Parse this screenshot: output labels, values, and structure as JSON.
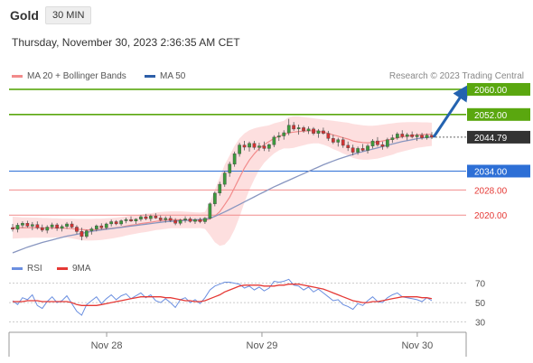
{
  "instrument": {
    "title": "Gold",
    "timeframe": "30 MIN"
  },
  "timestamp": "Thursday, November 30, 2023 2:36:35 AM CET",
  "legend": {
    "ma20": {
      "label": "MA 20 + Bollinger Bands",
      "color": "#f28b8b"
    },
    "ma50": {
      "label": "MA 50",
      "color": "#2d5fa8"
    },
    "rsi": {
      "label": "RSI",
      "color": "#6b8fe0"
    },
    "rsi_ma": {
      "label": "9MA",
      "color": "#e53935"
    }
  },
  "copyright": "Research © 2023 Trading Central",
  "colors": {
    "resistance": "#5aa70f",
    "pivot": "#2d6fd6",
    "support": "#f28b8b",
    "support_text": "#e53935",
    "current": "#333333",
    "arrow": "#2463b0",
    "candle_up": "#3c9a3c",
    "candle_down": "#d33333",
    "band_fill": "#fcd4d4",
    "ma50": "#8896c0"
  },
  "chart_data": [
    {
      "type": "candlestick",
      "xlabel": "",
      "ylabel": "",
      "x_ticks": [
        "Nov 28",
        "Nov 29",
        "Nov 30"
      ],
      "ylim": [
        2008,
        2062
      ],
      "levels": [
        {
          "label": "2060.00",
          "value": 2060.0,
          "kind": "resistance"
        },
        {
          "label": "2052.00",
          "value": 2052.0,
          "kind": "resistance"
        },
        {
          "label": "2044.79",
          "value": 2044.79,
          "kind": "current"
        },
        {
          "label": "2034.00",
          "value": 2034.0,
          "kind": "pivot"
        },
        {
          "label": "2028.00",
          "value": 2028.0,
          "kind": "support"
        },
        {
          "label": "2020.00",
          "value": 2020.0,
          "kind": "support"
        }
      ],
      "ohlc": [
        [
          2016.0,
          2017.2,
          2014.8,
          2015.5
        ],
        [
          2015.5,
          2017.5,
          2014.5,
          2016.8
        ],
        [
          2016.8,
          2018.0,
          2015.9,
          2017.4
        ],
        [
          2017.4,
          2018.2,
          2016.0,
          2016.5
        ],
        [
          2016.5,
          2017.8,
          2015.2,
          2017.0
        ],
        [
          2017.0,
          2018.0,
          2015.4,
          2016.0
        ],
        [
          2016.0,
          2017.0,
          2014.6,
          2015.2
        ],
        [
          2015.2,
          2016.8,
          2014.2,
          2016.2
        ],
        [
          2016.2,
          2017.6,
          2015.5,
          2016.9
        ],
        [
          2016.9,
          2017.5,
          2015.0,
          2015.8
        ],
        [
          2015.8,
          2017.0,
          2014.8,
          2016.4
        ],
        [
          2016.4,
          2017.8,
          2015.6,
          2017.2
        ],
        [
          2017.2,
          2018.0,
          2015.8,
          2016.2
        ],
        [
          2016.2,
          2016.8,
          2014.0,
          2014.8
        ],
        [
          2014.8,
          2016.0,
          2012.0,
          2013.2
        ],
        [
          2013.2,
          2015.4,
          2012.6,
          2015.0
        ],
        [
          2015.0,
          2016.2,
          2013.8,
          2015.6
        ],
        [
          2015.6,
          2017.0,
          2014.8,
          2016.6
        ],
        [
          2016.6,
          2017.4,
          2015.4,
          2016.0
        ],
        [
          2016.0,
          2017.6,
          2015.4,
          2017.2
        ],
        [
          2017.2,
          2018.6,
          2016.4,
          2017.9
        ],
        [
          2017.9,
          2018.4,
          2016.8,
          2017.2
        ],
        [
          2017.2,
          2018.6,
          2016.6,
          2018.2
        ],
        [
          2018.2,
          2019.2,
          2017.4,
          2018.6
        ],
        [
          2018.6,
          2019.6,
          2017.8,
          2018.1
        ],
        [
          2018.1,
          2019.0,
          2017.2,
          2018.7
        ],
        [
          2018.7,
          2020.0,
          2018.0,
          2019.5
        ],
        [
          2019.5,
          2020.4,
          2018.4,
          2018.9
        ],
        [
          2018.9,
          2020.2,
          2018.0,
          2019.7
        ],
        [
          2019.7,
          2020.6,
          2018.8,
          2019.1
        ],
        [
          2019.1,
          2019.9,
          2018.0,
          2018.5
        ],
        [
          2018.5,
          2019.6,
          2017.6,
          2019.0
        ],
        [
          2019.0,
          2019.8,
          2017.8,
          2018.3
        ],
        [
          2018.3,
          2019.0,
          2016.8,
          2017.4
        ],
        [
          2017.4,
          2018.8,
          2016.8,
          2018.4
        ],
        [
          2018.4,
          2019.6,
          2017.6,
          2018.8
        ],
        [
          2018.8,
          2019.4,
          2017.6,
          2018.0
        ],
        [
          2018.0,
          2019.0,
          2017.2,
          2018.6
        ],
        [
          2018.6,
          2019.2,
          2017.4,
          2017.9
        ],
        [
          2017.9,
          2019.4,
          2017.2,
          2019.0
        ],
        [
          2019.0,
          2024.0,
          2018.6,
          2023.6
        ],
        [
          2023.6,
          2027.5,
          2022.8,
          2027.0
        ],
        [
          2027.0,
          2030.6,
          2026.2,
          2029.8
        ],
        [
          2029.8,
          2034.0,
          2029.0,
          2033.4
        ],
        [
          2033.4,
          2037.0,
          2032.2,
          2036.2
        ],
        [
          2036.2,
          2040.2,
          2035.4,
          2039.5
        ],
        [
          2039.5,
          2043.0,
          2038.6,
          2042.3
        ],
        [
          2042.3,
          2043.6,
          2040.6,
          2041.6
        ],
        [
          2041.6,
          2043.4,
          2040.2,
          2042.8
        ],
        [
          2042.8,
          2043.6,
          2040.8,
          2041.5
        ],
        [
          2041.5,
          2043.0,
          2040.4,
          2042.0
        ],
        [
          2042.0,
          2043.4,
          2040.4,
          2041.2
        ],
        [
          2041.2,
          2042.8,
          2040.2,
          2042.4
        ],
        [
          2042.4,
          2045.4,
          2041.6,
          2044.8
        ],
        [
          2044.8,
          2046.4,
          2043.6,
          2045.2
        ],
        [
          2045.2,
          2047.0,
          2044.0,
          2046.2
        ],
        [
          2046.2,
          2050.6,
          2045.4,
          2048.6
        ],
        [
          2048.6,
          2049.6,
          2046.8,
          2047.4
        ],
        [
          2047.4,
          2048.8,
          2045.6,
          2047.8
        ],
        [
          2047.8,
          2048.4,
          2046.2,
          2046.8
        ],
        [
          2046.8,
          2048.2,
          2045.8,
          2047.4
        ],
        [
          2047.4,
          2048.0,
          2045.4,
          2046.0
        ],
        [
          2046.0,
          2047.4,
          2044.6,
          2046.8
        ],
        [
          2046.8,
          2047.8,
          2045.6,
          2046.0
        ],
        [
          2046.0,
          2046.8,
          2043.6,
          2044.4
        ],
        [
          2044.4,
          2045.6,
          2042.6,
          2043.2
        ],
        [
          2043.2,
          2044.6,
          2041.8,
          2044.0
        ],
        [
          2044.0,
          2044.8,
          2041.4,
          2042.2
        ],
        [
          2042.2,
          2043.4,
          2040.4,
          2041.4
        ],
        [
          2041.4,
          2042.4,
          2039.0,
          2040.0
        ],
        [
          2040.0,
          2041.8,
          2039.2,
          2041.2
        ],
        [
          2041.2,
          2042.6,
          2040.2,
          2040.6
        ],
        [
          2040.6,
          2042.6,
          2039.6,
          2042.0
        ],
        [
          2042.0,
          2044.2,
          2041.2,
          2043.6
        ],
        [
          2043.6,
          2044.8,
          2041.8,
          2042.4
        ],
        [
          2042.4,
          2043.4,
          2040.8,
          2041.8
        ],
        [
          2041.8,
          2044.6,
          2041.2,
          2044.0
        ],
        [
          2044.0,
          2045.6,
          2043.0,
          2044.6
        ],
        [
          2044.6,
          2046.4,
          2044.0,
          2045.8
        ],
        [
          2045.8,
          2047.0,
          2044.4,
          2045.0
        ],
        [
          2045.0,
          2046.2,
          2043.8,
          2045.6
        ],
        [
          2045.6,
          2046.6,
          2044.4,
          2044.9
        ],
        [
          2044.9,
          2046.0,
          2043.6,
          2045.4
        ],
        [
          2045.4,
          2046.2,
          2044.0,
          2044.6
        ],
        [
          2044.6,
          2046.0,
          2044.0,
          2045.4
        ],
        [
          2045.4,
          2046.4,
          2044.2,
          2044.8
        ]
      ],
      "ma50": [
        2008.0,
        2008.6,
        2009.2,
        2009.8,
        2010.3,
        2010.8,
        2011.3,
        2011.7,
        2012.1,
        2012.5,
        2012.9,
        2013.3,
        2013.6,
        2013.9,
        2014.2,
        2014.5,
        2014.8,
        2015.1,
        2015.3,
        2015.5,
        2015.7,
        2015.9,
        2016.1,
        2016.3,
        2016.5,
        2016.7,
        2016.9,
        2017.1,
        2017.3,
        2017.5,
        2017.7,
        2017.9,
        2018.0,
        2018.1,
        2018.2,
        2018.3,
        2018.4,
        2018.5,
        2018.6,
        2018.7,
        2019.0,
        2019.6,
        2020.3,
        2021.0,
        2021.8,
        2022.6,
        2023.4,
        2024.2,
        2025.0,
        2025.8,
        2026.6,
        2027.4,
        2028.2,
        2029.0,
        2029.7,
        2030.4,
        2031.1,
        2031.8,
        2032.5,
        2033.2,
        2033.9,
        2034.6,
        2035.3,
        2036.0,
        2036.6,
        2037.2,
        2037.8,
        2038.3,
        2038.8,
        2039.3,
        2039.8,
        2040.2,
        2040.6,
        2041.0,
        2041.4,
        2041.8,
        2042.2,
        2042.6,
        2043.0,
        2043.4,
        2043.7,
        2044.0,
        2044.3,
        2044.5,
        2044.7,
        2044.8
      ],
      "bollinger": {
        "upper": [
          2019.5,
          2019.4,
          2019.3,
          2019.3,
          2019.2,
          2019.2,
          2019.1,
          2019.1,
          2019.0,
          2019.0,
          2018.9,
          2018.9,
          2018.9,
          2018.8,
          2018.8,
          2018.8,
          2018.8,
          2018.9,
          2018.9,
          2019.0,
          2019.1,
          2019.2,
          2019.4,
          2019.6,
          2019.8,
          2020.0,
          2020.2,
          2020.4,
          2020.6,
          2020.8,
          2021.0,
          2021.1,
          2021.2,
          2021.2,
          2021.2,
          2021.1,
          2021.0,
          2020.9,
          2020.8,
          2021.0,
          2024.0,
          2028.0,
          2032.0,
          2036.0,
          2039.0,
          2042.0,
          2044.4,
          2046.0,
          2047.0,
          2047.6,
          2048.0,
          2048.3,
          2048.6,
          2049.2,
          2049.6,
          2050.0,
          2051.2,
          2051.4,
          2051.4,
          2051.2,
          2051.0,
          2050.8,
          2050.6,
          2050.4,
          2050.2,
          2050.0,
          2049.8,
          2049.6,
          2049.4,
          2049.0,
          2048.8,
          2048.6,
          2048.4,
          2048.4,
          2048.6,
          2048.8,
          2049.0,
          2049.2,
          2049.4,
          2049.5,
          2049.6,
          2049.6,
          2049.6,
          2049.5,
          2049.5,
          2049.4
        ],
        "lower": [
          2012.5,
          2012.6,
          2012.7,
          2012.7,
          2012.8,
          2012.8,
          2012.8,
          2012.8,
          2012.8,
          2012.9,
          2012.9,
          2012.8,
          2012.6,
          2012.3,
          2012.0,
          2011.9,
          2011.9,
          2012.0,
          2012.1,
          2012.3,
          2012.5,
          2012.8,
          2013.1,
          2013.5,
          2013.8,
          2014.1,
          2014.4,
          2014.6,
          2014.9,
          2015.2,
          2015.4,
          2015.6,
          2015.8,
          2015.8,
          2015.8,
          2015.8,
          2015.8,
          2015.8,
          2015.9,
          2015.6,
          2013.6,
          2011.4,
          2010.2,
          2010.6,
          2012.4,
          2015.4,
          2019.4,
          2024.0,
          2028.0,
          2031.4,
          2034.4,
          2036.6,
          2038.2,
          2039.6,
          2040.6,
          2041.2,
          2041.2,
          2041.4,
          2041.8,
          2042.2,
          2042.6,
          2042.8,
          2042.8,
          2042.4,
          2041.8,
          2041.0,
          2040.4,
          2039.6,
          2039.0,
          2038.2,
          2037.8,
          2037.6,
          2037.6,
          2037.8,
          2038.0,
          2038.4,
          2038.8,
          2039.2,
          2039.8,
          2040.2,
          2040.6,
          2041.0,
          2041.4,
          2041.6,
          2041.8,
          2042.0
        ]
      },
      "ma20": [
        2016.0,
        2016.0,
        2016.0,
        2016.0,
        2016.0,
        2016.0,
        2015.9,
        2015.9,
        2015.9,
        2015.9,
        2015.9,
        2015.8,
        2015.7,
        2015.5,
        2015.4,
        2015.3,
        2015.3,
        2015.4,
        2015.5,
        2015.6,
        2015.8,
        2016.0,
        2016.2,
        2016.5,
        2016.8,
        2017.0,
        2017.3,
        2017.5,
        2017.7,
        2018.0,
        2018.2,
        2018.4,
        2018.5,
        2018.5,
        2018.5,
        2018.4,
        2018.4,
        2018.3,
        2018.3,
        2018.3,
        2018.8,
        2019.7,
        2021.1,
        2023.3,
        2025.7,
        2028.7,
        2031.9,
        2035.0,
        2037.5,
        2039.5,
        2041.2,
        2042.4,
        2043.4,
        2044.4,
        2045.1,
        2045.6,
        2046.2,
        2046.4,
        2046.6,
        2046.7,
        2046.8,
        2046.8,
        2046.7,
        2046.4,
        2046.0,
        2045.5,
        2045.1,
        2044.6,
        2044.2,
        2043.6,
        2043.3,
        2043.1,
        2043.0,
        2043.1,
        2043.3,
        2043.6,
        2043.9,
        2044.2,
        2044.6,
        2044.9,
        2045.1,
        2045.3,
        2045.5,
        2045.6,
        2045.7,
        2045.7
      ]
    },
    {
      "type": "line",
      "xlabel": "",
      "ylabel": "",
      "ylim": [
        25,
        78
      ],
      "y_ticks": [
        70,
        50,
        30
      ],
      "series": [
        {
          "name": "RSI",
          "values": [
            52,
            48,
            55,
            53,
            58,
            47,
            44,
            51,
            56,
            50,
            52,
            57,
            49,
            41,
            37,
            48,
            52,
            56,
            49,
            54,
            58,
            53,
            57,
            59,
            54,
            57,
            60,
            55,
            58,
            52,
            50,
            54,
            50,
            45,
            53,
            55,
            50,
            53,
            49,
            55,
            63,
            67,
            69,
            71,
            71,
            70,
            69,
            65,
            67,
            63,
            66,
            62,
            65,
            72,
            71,
            72,
            74,
            68,
            67,
            63,
            66,
            61,
            64,
            60,
            56,
            52,
            53,
            48,
            46,
            43,
            49,
            47,
            52,
            56,
            51,
            50,
            55,
            58,
            60,
            56,
            55,
            54,
            53,
            51,
            55,
            52
          ]
        },
        {
          "name": "9MA",
          "values": [
            51,
            51,
            51,
            52,
            52,
            52,
            51,
            51,
            51,
            51,
            51,
            51,
            50,
            48,
            47,
            47,
            47,
            47,
            48,
            49,
            50,
            51,
            52,
            53,
            54,
            55,
            56,
            56,
            56,
            56,
            56,
            55,
            55,
            54,
            53,
            52,
            52,
            51,
            51,
            52,
            54,
            56,
            58,
            61,
            63,
            65,
            67,
            68,
            68,
            68,
            68,
            67,
            67,
            67,
            68,
            68,
            69,
            69,
            69,
            68,
            67,
            66,
            65,
            64,
            62,
            60,
            58,
            56,
            54,
            52,
            51,
            50,
            50,
            51,
            51,
            52,
            53,
            54,
            55,
            56,
            56,
            56,
            56,
            55,
            55,
            54
          ]
        }
      ]
    }
  ]
}
